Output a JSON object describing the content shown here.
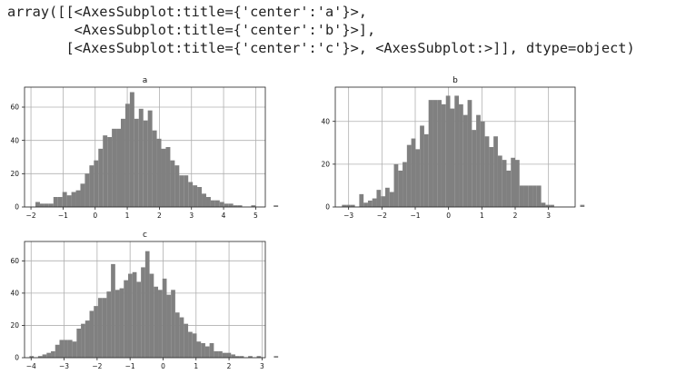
{
  "output_text": {
    "line1": "array([[<AxesSubplot:title={'center':'a'}>,",
    "line2": "        <AxesSubplot:title={'center':'b'}>],",
    "line3": "       [<AxesSubplot:title={'center':'c'}>, <AxesSubplot:>]], dtype=object)"
  },
  "style": {
    "bar_color": "#808080",
    "grid_color": "#b0b0b0",
    "axes_color": "#222222"
  },
  "chart_data": [
    {
      "type": "bar",
      "title": "a",
      "grid": true,
      "xlim": [
        -2.2,
        5.3
      ],
      "ylim": [
        0,
        72
      ],
      "xticks": [
        -2,
        -1,
        0,
        1,
        2,
        3,
        4,
        5
      ],
      "yticks": [
        0,
        20,
        40,
        60
      ],
      "bin_start": -2.0,
      "bin_width": 0.14,
      "values": [
        0,
        3,
        2,
        2,
        2,
        6,
        6,
        9,
        7,
        9,
        10,
        14,
        20,
        25,
        28,
        35,
        43,
        42,
        47,
        47,
        53,
        62,
        69,
        53,
        59,
        52,
        58,
        46,
        41,
        35,
        36,
        28,
        25,
        19,
        19,
        15,
        13,
        12,
        8,
        6,
        4,
        4,
        3,
        2,
        2,
        1,
        1,
        0,
        0,
        1,
        0,
        0,
        0,
        0,
        1
      ]
    },
    {
      "type": "bar",
      "title": "b",
      "grid": true,
      "xlim": [
        -3.4,
        3.8
      ],
      "ylim": [
        0,
        56
      ],
      "xticks": [
        -3,
        -2,
        -1,
        0,
        1,
        2,
        3
      ],
      "yticks": [
        0,
        20,
        40
      ],
      "bin_start": -3.2,
      "bin_width": 0.13,
      "values": [
        1,
        1,
        1,
        0,
        6,
        2,
        3,
        4,
        8,
        5,
        9,
        7,
        20,
        17,
        21,
        29,
        32,
        27,
        38,
        34,
        50,
        50,
        50,
        48,
        52,
        46,
        52,
        48,
        43,
        50,
        36,
        43,
        40,
        33,
        28,
        33,
        24,
        22,
        17,
        23,
        22,
        10,
        10,
        10,
        10,
        10,
        2,
        1,
        1,
        0,
        0,
        0,
        0,
        0,
        0,
        1
      ]
    },
    {
      "type": "bar",
      "title": "c",
      "grid": true,
      "xlim": [
        -4.2,
        3.1
      ],
      "ylim": [
        0,
        72
      ],
      "xticks": [
        -4,
        -3,
        -2,
        -1,
        0,
        1,
        2,
        3
      ],
      "yticks": [
        0,
        20,
        40,
        60
      ],
      "bin_start": -4.05,
      "bin_width": 0.13,
      "values": [
        1,
        0,
        1,
        2,
        3,
        4,
        8,
        11,
        11,
        11,
        10,
        18,
        21,
        23,
        29,
        32,
        37,
        37,
        41,
        58,
        42,
        43,
        48,
        52,
        53,
        47,
        56,
        66,
        52,
        44,
        42,
        49,
        39,
        42,
        28,
        25,
        21,
        16,
        15,
        10,
        9,
        7,
        9,
        4,
        4,
        3,
        3,
        2,
        1,
        1,
        0,
        1,
        0,
        1,
        0,
        0,
        0,
        1
      ]
    }
  ]
}
